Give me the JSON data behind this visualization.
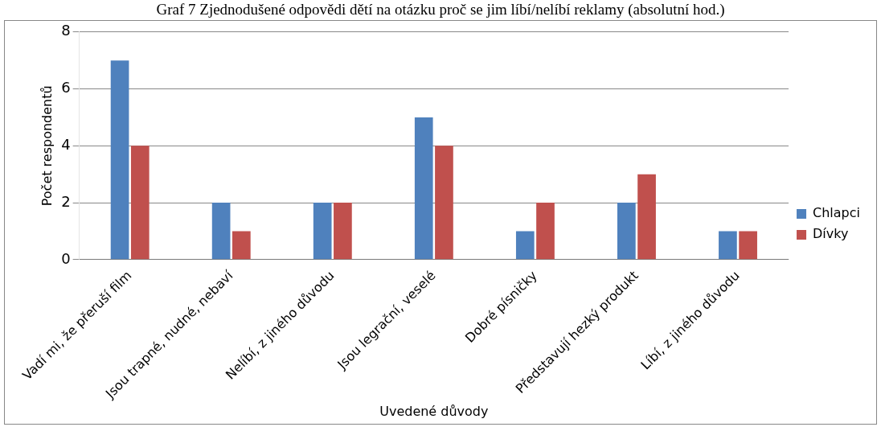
{
  "chart_data": {
    "type": "bar",
    "title": "Graf 7 Zjednodušené odpovědi dětí na otázku proč se jim líbí/nelíbí reklamy (absolutní hod.)",
    "xlabel": "Uvedené důvody",
    "ylabel": "Počet respondentů",
    "categories": [
      "Vadí mi, že přeruší film",
      "Jsou trapné, nudné, nebaví",
      "Nelíbí, z jiného důvodu",
      "Jsou legrační, veselé",
      "Dobré písničky",
      "Představují hezký produkt",
      "Líbí, z jiného důvodu"
    ],
    "series": [
      {
        "name": "Chlapci",
        "color": "#4f81bd",
        "values": [
          7,
          2,
          2,
          5,
          1,
          2,
          1
        ]
      },
      {
        "name": "Dívky",
        "color": "#c0504d",
        "values": [
          4,
          1,
          2,
          4,
          2,
          3,
          1
        ]
      }
    ],
    "ylim": [
      0,
      8
    ],
    "yticks": [
      0,
      2,
      4,
      6,
      8
    ],
    "grid": "y",
    "legend": "right"
  }
}
